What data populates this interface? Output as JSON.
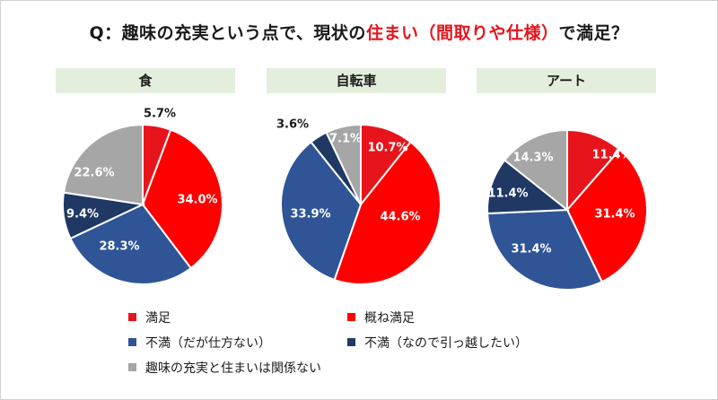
{
  "title": {
    "prefix": "Q：趣味の充実という点で、現状の",
    "accent": "住まい（間取りや仕様）",
    "suffix": "で満足？"
  },
  "colors": {
    "satisfied": "#e8141c",
    "mostly_satisfied": "#ff0000",
    "dissatisfied_ok": "#2f5597",
    "dissatisfied_moving": "#1f3864",
    "unrelated": "#a6a6a6"
  },
  "legend": [
    {
      "label": "満足",
      "color": "#e8141c"
    },
    {
      "label": "概ね満足",
      "color": "#ff0000"
    },
    {
      "label": "不満（だが仕方ない）",
      "color": "#2f5597"
    },
    {
      "label": "不満（なので引っ越したい）",
      "color": "#1f3864"
    },
    {
      "label": "趣味の充実と住まいは関係ない",
      "color": "#a6a6a6"
    }
  ],
  "chart_data": [
    {
      "type": "pie",
      "title": "食",
      "categories": [
        "満足",
        "概ね満足",
        "不満（だが仕方ない）",
        "不満（なので引っ越したい）",
        "趣味の充実と住まいは関係ない"
      ],
      "values": [
        5.7,
        34.0,
        28.3,
        9.4,
        22.6
      ],
      "labels": [
        "5.7%",
        "34.0%",
        "28.3%",
        "9.4%",
        "22.6%"
      ]
    },
    {
      "type": "pie",
      "title": "自転車",
      "categories": [
        "満足",
        "概ね満足",
        "不満（だが仕方ない）",
        "不満（なので引っ越したい）",
        "趣味の充実と住まいは関係ない"
      ],
      "values": [
        10.7,
        44.6,
        33.9,
        3.6,
        7.1
      ],
      "labels": [
        "10.7%",
        "44.6%",
        "33.9%",
        "3.6%",
        "7.1%"
      ]
    },
    {
      "type": "pie",
      "title": "アート",
      "categories": [
        "満足",
        "概ね満足",
        "不満（だが仕方ない）",
        "不満（なので引っ越したい）",
        "趣味の充実と住まいは関係ない"
      ],
      "values": [
        11.4,
        31.4,
        31.4,
        11.4,
        14.3
      ],
      "labels": [
        "11.4%",
        "31.4%",
        "31.4%",
        "11.4%",
        "14.3%"
      ]
    }
  ]
}
